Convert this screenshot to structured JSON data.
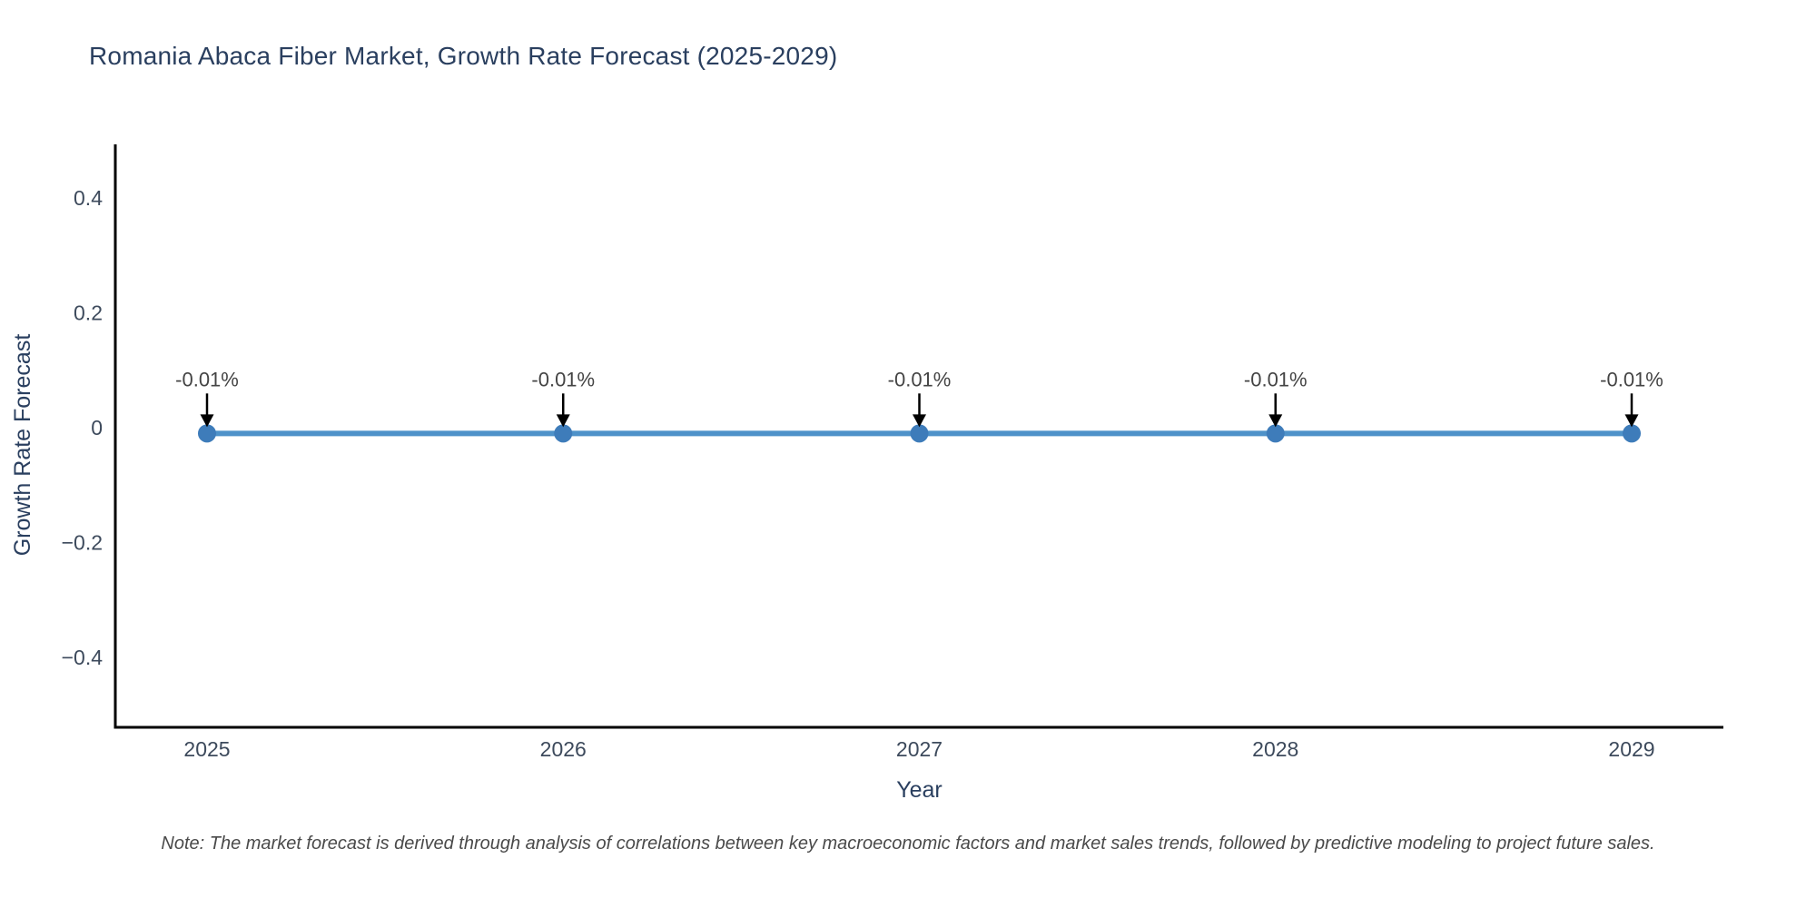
{
  "chart_data": {
    "type": "line",
    "title": "Romania Abaca Fiber Market, Growth Rate Forecast (2025-2029)",
    "xlabel": "Year",
    "ylabel": "Growth Rate Forecast",
    "x": [
      2025,
      2026,
      2027,
      2028,
      2029
    ],
    "x_labels": [
      "2025",
      "2026",
      "2027",
      "2028",
      "2029"
    ],
    "series": [
      {
        "name": "Growth Rate Forecast",
        "values": [
          -0.01,
          -0.01,
          -0.01,
          -0.01,
          -0.01
        ]
      }
    ],
    "point_labels": [
      "-0.01%",
      "-0.01%",
      "-0.01%",
      "-0.01%",
      "-0.01%"
    ],
    "yticks": [
      0.4,
      0.2,
      0,
      -0.2,
      -0.4
    ],
    "ytick_labels": [
      "0.4",
      "0.2",
      "0",
      "−0.2",
      "−0.4"
    ],
    "ylim": [
      -0.52,
      0.49
    ],
    "grid": false,
    "legend": "none",
    "annotation_arrows": "down-to-point",
    "note": "Note: The market forecast is derived through analysis of correlations between key macroeconomic factors and market sales trends, followed by predictive modeling to project future sales.",
    "colors": {
      "line": "#4e92c9",
      "marker": "#3e7cba",
      "arrow": "#000000",
      "axis": "#000000",
      "title_text": "#2a3f5f",
      "tick_text": "#3d4a5c",
      "axis_title_text": "#2a3f5f",
      "annotation_text": "#444444",
      "note_text": "#4a4a4a"
    }
  }
}
